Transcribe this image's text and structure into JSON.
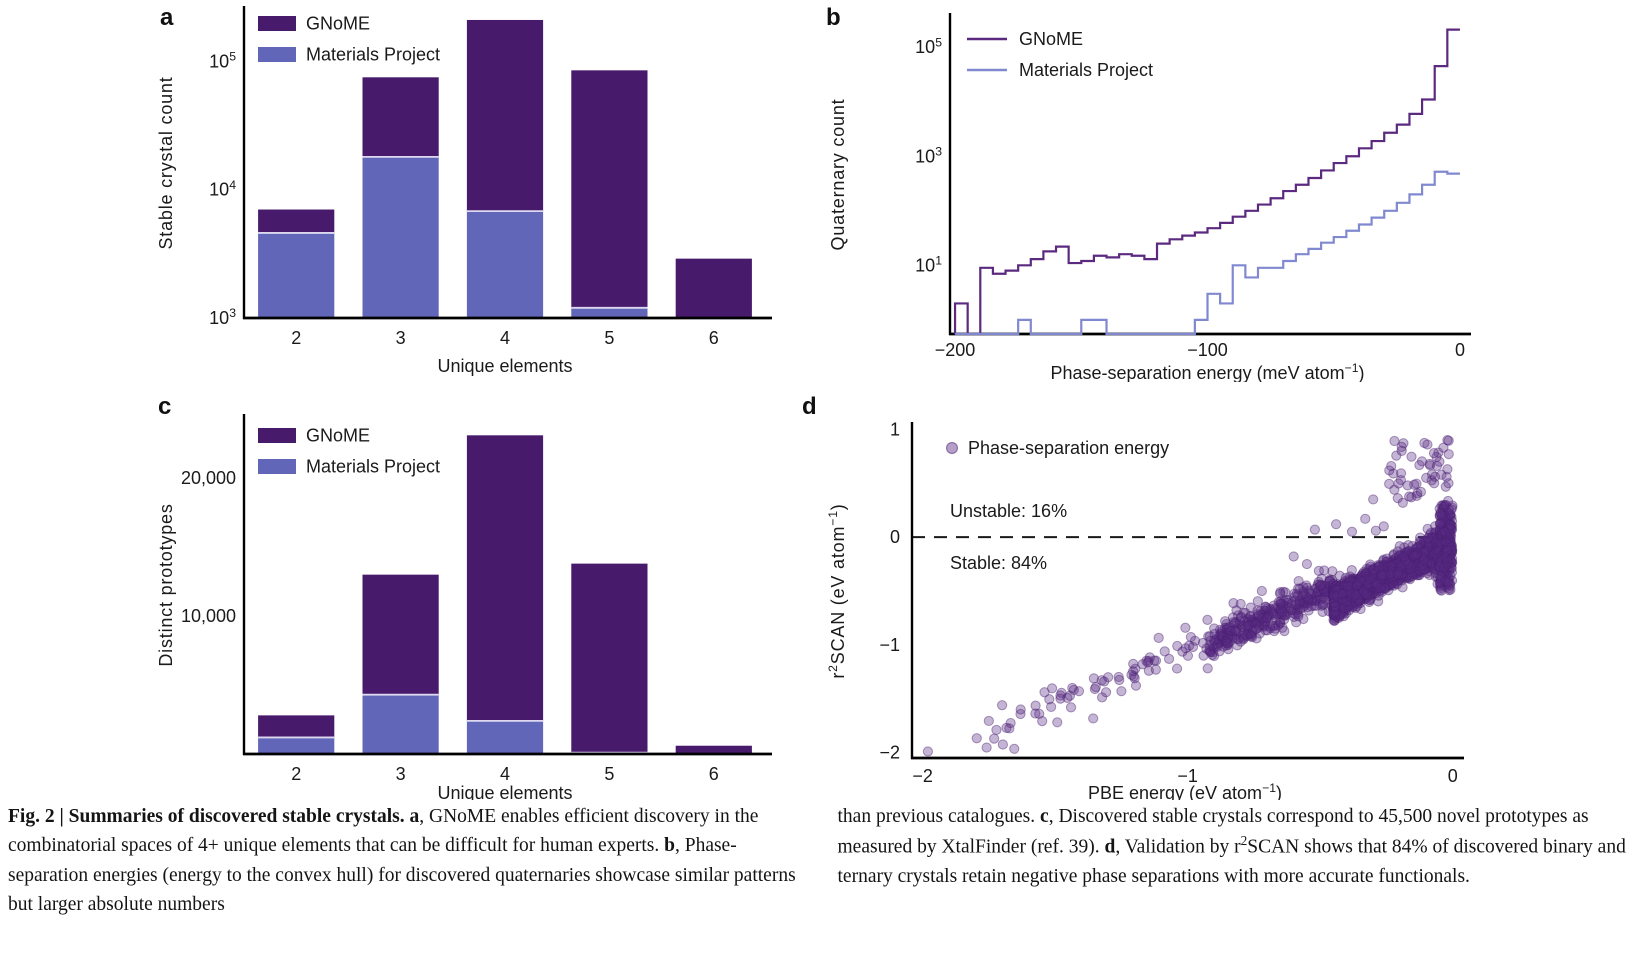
{
  "colors": {
    "gnome": "#481a6c",
    "materials_project": "#6166b8",
    "gnome_line": "#5b2a80",
    "mp_line": "#8089d0",
    "bar_separator": "#ddd8ef",
    "scatter_fill": "#5a2b84",
    "scatter_edge": "#4a2070",
    "axis": "#000000",
    "text": "#1a1a1a",
    "dashed_line": "#1a1a1a"
  },
  "panels": {
    "a": {
      "letter": "a"
    },
    "b": {
      "letter": "b"
    },
    "c": {
      "letter": "c"
    },
    "d": {
      "letter": "d"
    }
  },
  "chart_data": [
    {
      "panel": "a",
      "type": "bar",
      "stacked": true,
      "yscale": "log",
      "categories": [
        "2",
        "3",
        "4",
        "5",
        "6"
      ],
      "series": [
        {
          "name": "Materials Project",
          "color_key": "materials_project",
          "values": [
            4600,
            18000,
            6800,
            1200,
            0
          ]
        },
        {
          "name": "GNoME",
          "color_key": "gnome",
          "values": [
            2400,
            57000,
            203000,
            83800,
            2900
          ]
        }
      ],
      "stack_totals": [
        7000,
        75000,
        209800,
        85000,
        2900
      ],
      "xlabel": "Unique elements",
      "ylabel": "Stable crystal count",
      "ylim": [
        1000,
        260000
      ],
      "yticks": [
        {
          "v": 1000,
          "base": "10",
          "exp": "3"
        },
        {
          "v": 10000,
          "base": "10",
          "exp": "4"
        },
        {
          "v": 100000,
          "base": "10",
          "exp": "5"
        }
      ],
      "legend": [
        "GNoME",
        "Materials Project"
      ],
      "legend_style": "patch",
      "grid": false
    },
    {
      "panel": "b",
      "type": "step_histogram",
      "yscale": "log",
      "bin_start": -200,
      "bin_width": 5,
      "series": [
        {
          "name": "GNoME",
          "color_key": "gnome_line",
          "counts": [
            2,
            0,
            9,
            7,
            8,
            10,
            13,
            18,
            22,
            11,
            12,
            15,
            14,
            16,
            15,
            13,
            25,
            30,
            35,
            40,
            48,
            60,
            78,
            100,
            130,
            170,
            230,
            300,
            400,
            550,
            750,
            1000,
            1400,
            1900,
            2700,
            3800,
            6000,
            11000,
            45000,
            210000
          ]
        },
        {
          "name": "Materials Project",
          "color_key": "mp_line",
          "counts": [
            0,
            0,
            0,
            0,
            0,
            1,
            0,
            0,
            0,
            0,
            1,
            1,
            0,
            0,
            0,
            0,
            0,
            0,
            0,
            1,
            3,
            2,
            10,
            6,
            9,
            9,
            12,
            16,
            20,
            26,
            33,
            43,
            56,
            75,
            100,
            140,
            200,
            300,
            520,
            480
          ]
        }
      ],
      "xlabel_parts": [
        {
          "t": "Phase-separation energy (meV atom"
        },
        {
          "t": "−1",
          "sup": true
        },
        {
          "t": ")"
        }
      ],
      "ylabel": "Quaternary count",
      "xlim": [
        -202,
        2
      ],
      "ylim": [
        0.55,
        390000
      ],
      "xticks": [
        {
          "v": -200,
          "label": "−200"
        },
        {
          "v": -100,
          "label": "−100"
        },
        {
          "v": 0,
          "label": "0"
        }
      ],
      "yticks": [
        {
          "v": 10,
          "base": "10",
          "exp": "1"
        },
        {
          "v": 1000,
          "base": "10",
          "exp": "3"
        },
        {
          "v": 100000,
          "base": "10",
          "exp": "5"
        }
      ],
      "legend": [
        "GNoME",
        "Materials Project"
      ],
      "legend_style": "line",
      "grid": false
    },
    {
      "panel": "c",
      "type": "bar",
      "stacked": true,
      "yscale": "linear",
      "categories": [
        "2",
        "3",
        "4",
        "5",
        "6"
      ],
      "series": [
        {
          "name": "Materials Project",
          "color_key": "materials_project",
          "values": [
            1200,
            4300,
            2400,
            100,
            0
          ]
        },
        {
          "name": "GNoME",
          "color_key": "gnome",
          "values": [
            1600,
            8700,
            20700,
            13700,
            600
          ]
        }
      ],
      "stack_totals": [
        2800,
        13000,
        23100,
        13800,
        600
      ],
      "xlabel": "Unique elements",
      "ylabel": "Distinct prototypes",
      "ylim": [
        0,
        24500
      ],
      "yticks": [
        {
          "v": 10000,
          "label": "10,000"
        },
        {
          "v": 20000,
          "label": "20,000"
        }
      ],
      "legend": [
        "GNoME",
        "Materials Project"
      ],
      "legend_style": "patch",
      "grid": false
    },
    {
      "panel": "d",
      "type": "scatter",
      "xlabel_parts": [
        {
          "t": "PBE energy (eV atom"
        },
        {
          "t": "−1",
          "sup": true
        },
        {
          "t": ")"
        }
      ],
      "ylabel_parts": [
        {
          "t": "r"
        },
        {
          "t": "2",
          "sup": true
        },
        {
          "t": "SCAN (eV atom"
        },
        {
          "t": "−1",
          "sup": true
        },
        {
          "t": ")"
        }
      ],
      "xlim": [
        -2.04,
        0.02
      ],
      "ylim": [
        -2.05,
        1.05
      ],
      "xticks": [
        {
          "v": -2,
          "label": "−2"
        },
        {
          "v": -1,
          "label": "−1"
        },
        {
          "v": 0,
          "label": "0"
        }
      ],
      "yticks": [
        {
          "v": 1,
          "label": "1"
        },
        {
          "v": 0,
          "label": "0"
        },
        {
          "v": -1,
          "label": "−1"
        },
        {
          "v": -2,
          "label": "−2"
        }
      ],
      "hline": {
        "y": 0,
        "style": "dashed"
      },
      "annotations": [
        {
          "text": "Unstable: 16%",
          "position": "above_line"
        },
        {
          "text": "Stable: 84%",
          "position": "below_line"
        }
      ],
      "legend_label": "Phase-separation energy",
      "point_style": {
        "radius": 4.6,
        "fill_key": "scatter_fill",
        "fill_opacity": 0.35,
        "edge_key": "scatter_edge",
        "edge_opacity": 0.45
      },
      "generator": {
        "seed": 20231129,
        "clusters": [
          {
            "n": 60,
            "x_min": -1.82,
            "x_max": -0.92,
            "x_pow": 0.85,
            "slope": 1.0,
            "intercept": -0.02,
            "noise_sd": 0.1
          },
          {
            "n": 330,
            "x_min": -0.92,
            "x_max": -0.45,
            "x_pow": 1.0,
            "slope": 1.12,
            "intercept": 0.05,
            "noise_sd": 0.08
          },
          {
            "n": 2300,
            "x_min": -0.45,
            "x_max": -0.002,
            "x_pow": 1.75,
            "slope": 1.25,
            "intercept": -0.045,
            "noise_sd": 0.065,
            "flare_start": -0.16,
            "flare_sd": 0.12
          },
          {
            "n": 170,
            "x_min": -0.05,
            "x_max": -0.001,
            "uniform_y": [
              -0.5,
              0.3
            ]
          },
          {
            "n": 40,
            "x_min": -0.24,
            "x_max": -0.002,
            "x_pow": 1.2,
            "uniform_y": [
              0.3,
              0.9
            ]
          }
        ],
        "landmark_points": [
          [
            -1.98,
            -1.99
          ],
          [
            -1.73,
            -1.87
          ],
          [
            -1.7,
            -1.56
          ],
          [
            -1.63,
            -1.6
          ],
          [
            -1.56,
            -1.64
          ],
          [
            -1.54,
            -1.44
          ],
          [
            -1.48,
            -1.47
          ],
          [
            -1.44,
            -1.58
          ],
          [
            -1.41,
            -1.43
          ],
          [
            -1.35,
            -1.41
          ],
          [
            -1.3,
            -1.3
          ],
          [
            -1.25,
            -1.43
          ],
          [
            -1.2,
            -1.31
          ],
          [
            -1.17,
            -1.18
          ],
          [
            -1.12,
            -1.23
          ],
          [
            -1.07,
            -1.13
          ],
          [
            -1.04,
            -1.22
          ],
          [
            -0.98,
            -1.02
          ],
          [
            -0.94,
            -1.1
          ],
          [
            -0.9,
            -0.96
          ],
          [
            -0.88,
            -1.06
          ],
          [
            -0.84,
            -0.87
          ],
          [
            -0.8,
            -0.97
          ],
          [
            -0.77,
            -0.82
          ],
          [
            -0.74,
            -0.94
          ],
          [
            -0.7,
            -0.75
          ],
          [
            -0.67,
            -0.85
          ],
          [
            -0.6,
            -0.18
          ],
          [
            -0.55,
            -0.25
          ],
          [
            -0.5,
            -0.45
          ],
          [
            -0.65,
            -0.6
          ],
          [
            -0.72,
            -0.5
          ],
          [
            -0.8,
            -0.62
          ],
          [
            -0.52,
            0.07
          ],
          [
            -0.44,
            0.12
          ],
          [
            -0.38,
            0.05
          ],
          [
            -0.33,
            0.17
          ],
          [
            -0.29,
            0.06
          ],
          [
            -0.26,
            0.1
          ],
          [
            -0.02,
            0.9
          ],
          [
            -0.035,
            0.83
          ],
          [
            -0.015,
            0.77
          ],
          [
            -0.05,
            0.7
          ],
          [
            -0.02,
            0.63
          ],
          [
            -0.1,
            0.55
          ],
          [
            -0.17,
            0.48
          ],
          [
            -0.22,
            0.44
          ],
          [
            -0.07,
            0.5
          ],
          [
            -0.12,
            0.42
          ],
          [
            -0.3,
            0.35
          ]
        ]
      }
    }
  ],
  "caption": {
    "left_runs": [
      {
        "t": "Fig. 2 | Summaries of discovered stable crystals. ",
        "b": true
      },
      {
        "t": "a",
        "b": true
      },
      {
        "t": ", GNoME enables efficient discovery in the combinatorial spaces of 4+ unique elements that can be difficult for human experts. "
      },
      {
        "t": "b",
        "b": true
      },
      {
        "t": ", Phase-separation energies (energy to the convex hull) for discovered quaternaries showcase similar patterns but larger absolute numbers"
      }
    ],
    "right_runs": [
      {
        "t": "than previous catalogues. "
      },
      {
        "t": "c",
        "b": true
      },
      {
        "t": ", Discovered stable crystals correspond to 45,500 novel prototypes as measured by XtalFinder (ref. 39). "
      },
      {
        "t": "d",
        "b": true
      },
      {
        "t": ", Validation by r"
      },
      {
        "t": "2",
        "sup": true
      },
      {
        "t": "SCAN shows that 84% of discovered binary and ternary crystals retain negative phase separations with more accurate functionals."
      }
    ]
  }
}
